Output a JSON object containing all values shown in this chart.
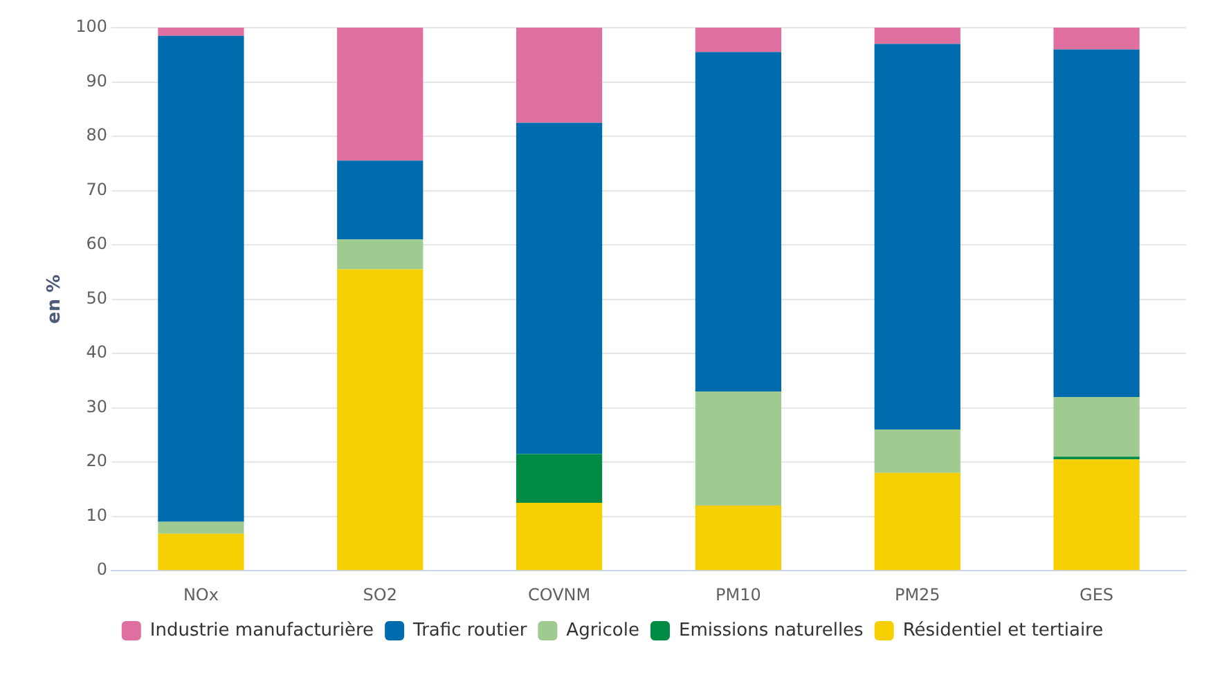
{
  "chart_data": {
    "type": "bar",
    "stacked": true,
    "ylabel": "en %",
    "categories": [
      "NOx",
      "SO2",
      "COVNM",
      "PM10",
      "PM25",
      "GES"
    ],
    "series": [
      {
        "name": "Résidentiel et tertiaire",
        "color": "#f4d000",
        "values": [
          6.8,
          55.5,
          12.5,
          12,
          18,
          20.5
        ]
      },
      {
        "name": "Emissions naturelles",
        "color": "#008a44",
        "values": [
          0,
          0,
          9,
          0,
          0,
          0.5
        ]
      },
      {
        "name": "Agricole",
        "color": "#a0cb90",
        "values": [
          2.2,
          5.5,
          0,
          21,
          8,
          11
        ]
      },
      {
        "name": "Trafic routier",
        "color": "#006bad",
        "values": [
          89.5,
          14.5,
          61,
          62.5,
          71,
          64
        ]
      },
      {
        "name": "Industrie manufacturière",
        "color": "#de6f9f",
        "values": [
          1.5,
          24.5,
          17.5,
          4.5,
          3,
          4
        ]
      }
    ],
    "ylim": [
      0,
      100
    ],
    "yticks": [
      0,
      10,
      20,
      30,
      40,
      50,
      60,
      70,
      80,
      90,
      100
    ],
    "grid": "y",
    "legend": "bottom"
  }
}
